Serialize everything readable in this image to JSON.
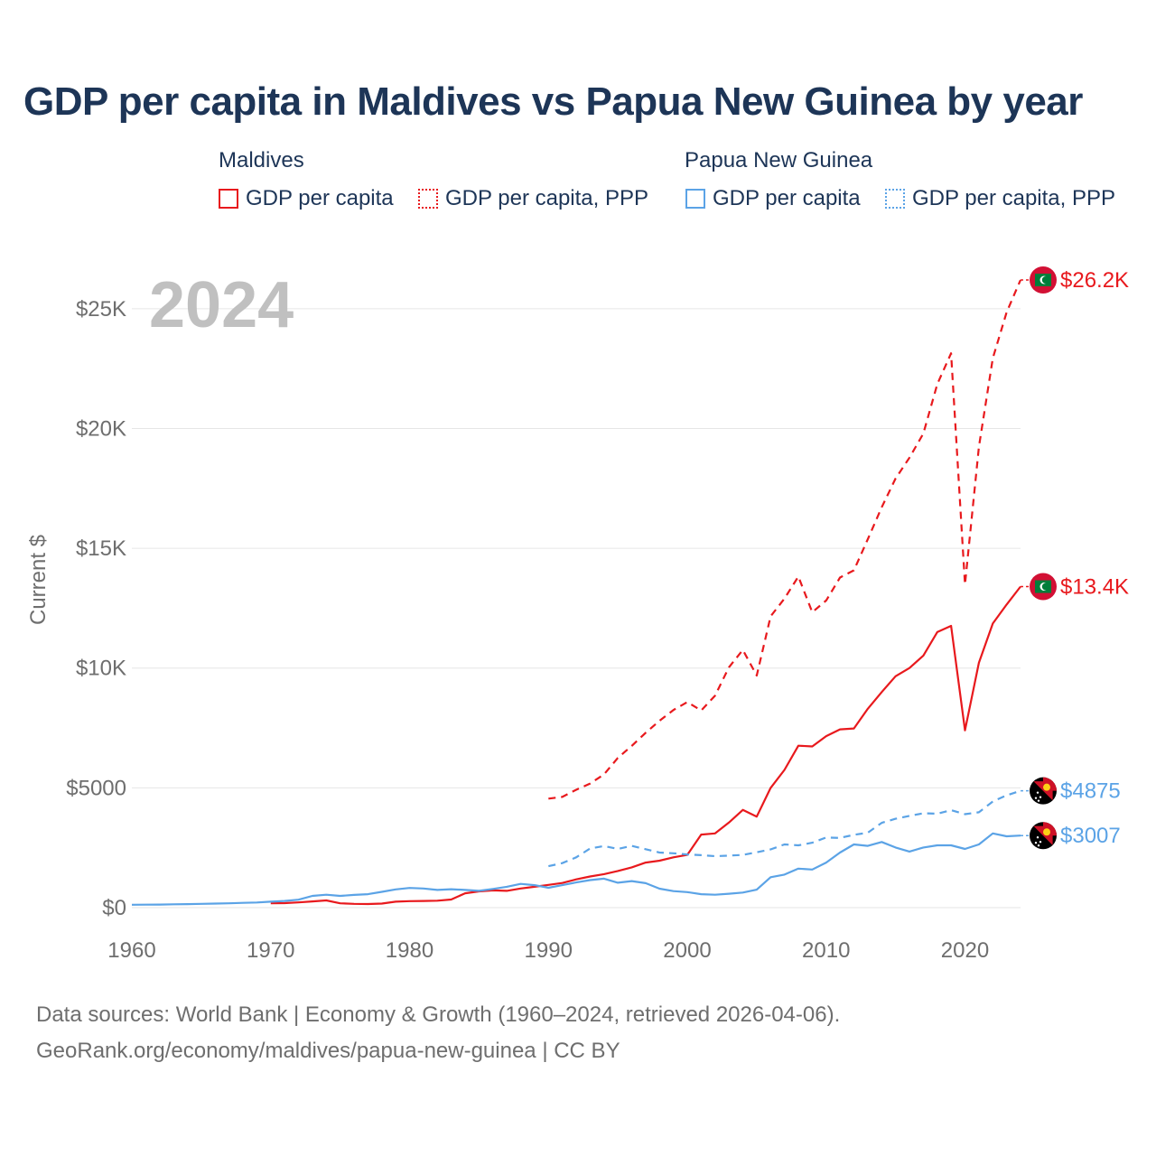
{
  "title": "GDP per capita in Maldives vs Papua New Guinea by year",
  "legend": {
    "groups": [
      {
        "name": "Maldives",
        "items": [
          "GDP per capita",
          "GDP per capita, PPP"
        ]
      },
      {
        "name": "Papua New Guinea",
        "items": [
          "GDP per capita",
          "GDP per capita, PPP"
        ]
      }
    ]
  },
  "colors": {
    "maldives": "#e8191d",
    "png": "#5ba3e6",
    "grid": "#e6e6e6",
    "axis_text": "#6e6e6e",
    "year_watermark": "#c0c0c0"
  },
  "footer": {
    "line1": "Data sources: World Bank | Economy & Growth (1960–2024, retrieved 2026-04-06).",
    "line2": "GeoRank.org/economy/maldives/papua-new-guinea | CC BY"
  },
  "chart_data": {
    "type": "line",
    "year_label": "2024",
    "ylabel": "Current $",
    "xlim": [
      1960,
      2024
    ],
    "ylim": [
      0,
      26200
    ],
    "x_ticks": [
      1960,
      1970,
      1980,
      1990,
      2000,
      2010,
      2020
    ],
    "y_ticks": [
      {
        "value": 0,
        "label": "$0"
      },
      {
        "value": 5000,
        "label": "$5000"
      },
      {
        "value": 10000,
        "label": "$10K"
      },
      {
        "value": 15000,
        "label": "$15K"
      },
      {
        "value": 20000,
        "label": "$20K"
      },
      {
        "value": 25000,
        "label": "$25K"
      }
    ],
    "series": [
      {
        "name": "Maldives GDP per capita",
        "country": "maldives",
        "dash": false,
        "end_label": "$13.4K",
        "x": [
          1970,
          1971,
          1972,
          1973,
          1974,
          1975,
          1976,
          1977,
          1978,
          1979,
          1980,
          1981,
          1982,
          1983,
          1984,
          1985,
          1986,
          1987,
          1988,
          1989,
          1990,
          1991,
          1992,
          1993,
          1994,
          1995,
          1996,
          1997,
          1998,
          1999,
          2000,
          2001,
          2002,
          2003,
          2004,
          2005,
          2006,
          2007,
          2008,
          2009,
          2010,
          2011,
          2012,
          2013,
          2014,
          2015,
          2016,
          2017,
          2018,
          2019,
          2020,
          2021,
          2022,
          2023,
          2024
        ],
        "y": [
          180,
          190,
          220,
          260,
          300,
          180,
          160,
          150,
          170,
          250,
          270,
          280,
          290,
          340,
          600,
          680,
          720,
          700,
          800,
          870,
          950,
          1030,
          1180,
          1300,
          1400,
          1530,
          1680,
          1880,
          1960,
          2100,
          2200,
          3050,
          3100,
          3550,
          4080,
          3800,
          5000,
          5750,
          6760,
          6730,
          7160,
          7440,
          7480,
          8300,
          9000,
          9660,
          10000,
          10520,
          11500,
          11760,
          7400,
          10220,
          11860,
          12650,
          13400
        ]
      },
      {
        "name": "Maldives GDP per capita, PPP",
        "country": "maldives",
        "dash": true,
        "end_label": "$26.2K",
        "x": [
          1990,
          1991,
          1992,
          1993,
          1994,
          1995,
          1996,
          1997,
          1998,
          1999,
          2000,
          2001,
          2002,
          2003,
          2004,
          2005,
          2006,
          2007,
          2008,
          2009,
          2010,
          2011,
          2012,
          2013,
          2014,
          2015,
          2016,
          2017,
          2018,
          2019,
          2020,
          2021,
          2022,
          2023,
          2024
        ],
        "y": [
          4550,
          4620,
          4920,
          5180,
          5560,
          6250,
          6750,
          7300,
          7800,
          8250,
          8580,
          8230,
          8850,
          10030,
          10760,
          9690,
          12160,
          12900,
          13820,
          12330,
          12820,
          13780,
          14080,
          15380,
          16710,
          17910,
          18780,
          19790,
          21850,
          23140,
          13490,
          19230,
          22930,
          24850,
          26200
        ]
      },
      {
        "name": "Papua New Guinea GDP per capita",
        "country": "png",
        "dash": false,
        "end_label": "$3007",
        "x": [
          1960,
          1961,
          1962,
          1963,
          1964,
          1965,
          1966,
          1967,
          1968,
          1969,
          1970,
          1971,
          1972,
          1973,
          1974,
          1975,
          1976,
          1977,
          1978,
          1979,
          1980,
          1981,
          1982,
          1983,
          1984,
          1985,
          1986,
          1987,
          1988,
          1989,
          1990,
          1991,
          1992,
          1993,
          1994,
          1995,
          1996,
          1997,
          1998,
          1999,
          2000,
          2001,
          2002,
          2003,
          2004,
          2005,
          2006,
          2007,
          2008,
          2009,
          2010,
          2011,
          2012,
          2013,
          2014,
          2015,
          2016,
          2017,
          2018,
          2019,
          2020,
          2021,
          2022,
          2023,
          2024
        ],
        "y": [
          120,
          125,
          130,
          138,
          148,
          158,
          170,
          182,
          198,
          215,
          250,
          280,
          330,
          490,
          540,
          490,
          530,
          560,
          660,
          760,
          820,
          800,
          740,
          770,
          740,
          700,
          780,
          870,
          990,
          940,
          830,
          940,
          1050,
          1150,
          1210,
          1040,
          1110,
          1020,
          790,
          690,
          650,
          560,
          540,
          580,
          630,
          750,
          1270,
          1380,
          1630,
          1590,
          1880,
          2300,
          2640,
          2580,
          2740,
          2510,
          2340,
          2510,
          2600,
          2600,
          2450,
          2640,
          3100,
          2980,
          3007
        ]
      },
      {
        "name": "Papua New Guinea GDP per capita, PPP",
        "country": "png",
        "dash": true,
        "end_label": "$4875",
        "x": [
          1990,
          1991,
          1992,
          1993,
          1994,
          1995,
          1996,
          1997,
          1998,
          1999,
          2000,
          2001,
          2002,
          2003,
          2004,
          2005,
          2006,
          2007,
          2008,
          2009,
          2010,
          2011,
          2012,
          2013,
          2014,
          2015,
          2016,
          2017,
          2018,
          2019,
          2020,
          2021,
          2022,
          2023,
          2024
        ],
        "y": [
          1730,
          1860,
          2100,
          2470,
          2570,
          2450,
          2580,
          2440,
          2300,
          2270,
          2220,
          2190,
          2150,
          2170,
          2200,
          2310,
          2430,
          2640,
          2600,
          2710,
          2930,
          2910,
          3040,
          3130,
          3540,
          3710,
          3830,
          3940,
          3920,
          4070,
          3900,
          3980,
          4430,
          4690,
          4875
        ]
      }
    ]
  }
}
